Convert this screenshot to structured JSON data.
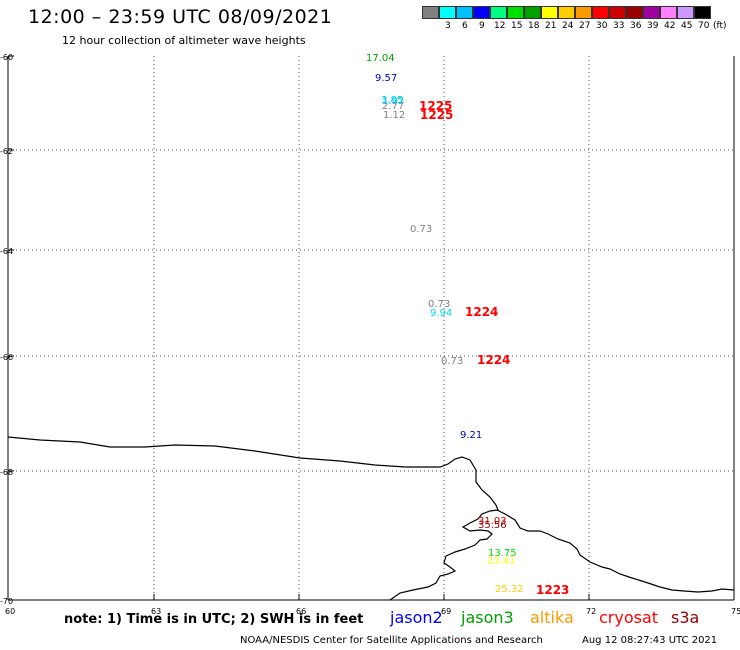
{
  "header": {
    "title": "12:00 – 23:59 UTC 08/09/2021",
    "subtitle": "12 hour collection of altimeter wave heights"
  },
  "legend": {
    "unit": "(ft)",
    "scale": [
      {
        "label": "",
        "color": "#808080"
      },
      {
        "label": "3",
        "color": "#00ffff"
      },
      {
        "label": "6",
        "color": "#00bfff"
      },
      {
        "label": "9",
        "color": "#0000ff"
      },
      {
        "label": "12",
        "color": "#00ff80"
      },
      {
        "label": "15",
        "color": "#00e000"
      },
      {
        "label": "18",
        "color": "#00a000"
      },
      {
        "label": "21",
        "color": "#ffff00"
      },
      {
        "label": "24",
        "color": "#ffcc00"
      },
      {
        "label": "27",
        "color": "#ff9900"
      },
      {
        "label": "30",
        "color": "#ff0000"
      },
      {
        "label": "33",
        "color": "#cc0000"
      },
      {
        "label": "36",
        "color": "#990000"
      },
      {
        "label": "39",
        "color": "#a000a0"
      },
      {
        "label": "42",
        "color": "#ff80ff"
      },
      {
        "label": "45",
        "color": "#cc99ff"
      },
      {
        "label": "70",
        "color": "#000000"
      }
    ]
  },
  "axes": {
    "lat_labels": [
      "-60",
      "-62",
      "-64",
      "-66",
      "-68",
      "-70"
    ],
    "lon_labels": [
      "60",
      "63",
      "66",
      "69",
      "72",
      "75"
    ]
  },
  "observations": [
    {
      "text": "17.04",
      "color": "#00a000"
    },
    {
      "text": "9.57",
      "color": "#0000c0"
    },
    {
      "text": "3.85",
      "color": "#00dddd"
    },
    {
      "text": "2.77",
      "color": "#808080"
    },
    {
      "text": "1.92",
      "color": "#00bfff"
    },
    {
      "text": "1.12",
      "color": "#808080"
    },
    {
      "text": "0.73",
      "color": "#808080"
    },
    {
      "text": "0.73",
      "color": "#808080"
    },
    {
      "text": "9.94",
      "color": "#00dddd"
    },
    {
      "text": "0.73",
      "color": "#808080"
    },
    {
      "text": "9.21",
      "color": "#0000c0"
    },
    {
      "text": "31.03",
      "color": "#cc0000"
    },
    {
      "text": "35.56",
      "color": "#990000"
    },
    {
      "text": "13.75",
      "color": "#00e000"
    },
    {
      "text": "23.41",
      "color": "#ffff00"
    },
    {
      "text": "25.32",
      "color": "#ffcc00"
    }
  ],
  "times": [
    {
      "text": "1225",
      "color": "#ff0000"
    },
    {
      "text": "1225",
      "color": "#ff0000"
    },
    {
      "text": "1224",
      "color": "#ff0000"
    },
    {
      "text": "1224",
      "color": "#ff0000"
    },
    {
      "text": "1223",
      "color": "#ff0000"
    }
  ],
  "note": "note: 1) Time is in UTC; 2) SWH is in feet",
  "satellites": [
    {
      "name": "jason2",
      "color": "#0000ff"
    },
    {
      "name": "jason3",
      "color": "#00a000"
    },
    {
      "name": "altika",
      "color": "#ff9900"
    },
    {
      "name": "cryosat",
      "color": "#ff0000"
    },
    {
      "name": "s3a",
      "color": "#990000"
    }
  ],
  "footer": {
    "left": "NOAA/NESDIS Center for Satellite Applications and Research",
    "right": "Aug 12 08:27:43 UTC 2021"
  }
}
